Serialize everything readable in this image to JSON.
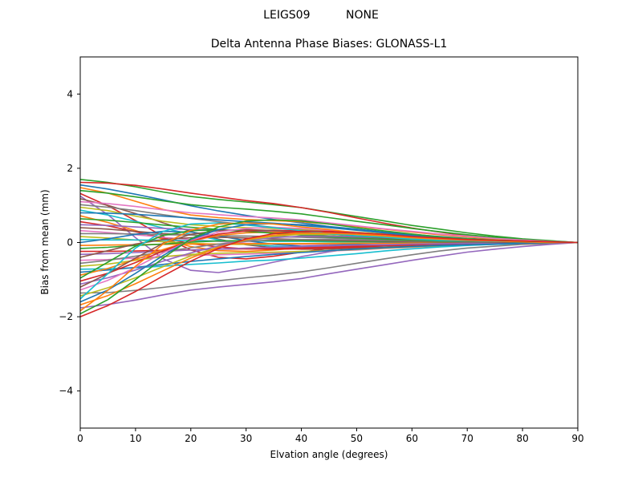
{
  "figure": {
    "suptitle": "LEIGS09          NONE",
    "background": "#ffffff",
    "text_color": "#000000",
    "axis_color": "#000000"
  },
  "chart_data": {
    "type": "line",
    "suptitle": "LEIGS09          NONE",
    "title": "Delta Antenna Phase Biases: GLONASS-L1",
    "xlabel": "Elvation angle (degrees)",
    "ylabel": "Bias from mean (mm)",
    "xlim": [
      0,
      90
    ],
    "ylim": [
      -5,
      5
    ],
    "xticks": [
      0,
      10,
      20,
      30,
      40,
      50,
      60,
      70,
      80,
      90
    ],
    "xtick_labels": [
      "0",
      "10",
      "20",
      "30",
      "40",
      "50",
      "60",
      "70",
      "80",
      "90"
    ],
    "yticks": [
      -4,
      -2,
      0,
      2,
      4
    ],
    "ytick_labels": [
      "−4",
      "−2",
      "0",
      "2",
      "4"
    ],
    "grid": false,
    "legend": "none",
    "x": [
      0,
      5,
      10,
      15,
      20,
      25,
      30,
      35,
      40,
      45,
      50,
      55,
      60,
      65,
      70,
      75,
      80,
      85,
      90
    ],
    "series": [
      {
        "color": "#2ca02c",
        "values": [
          1.7,
          1.62,
          1.5,
          1.36,
          1.24,
          1.16,
          1.09,
          1.02,
          0.94,
          0.82,
          0.7,
          0.58,
          0.46,
          0.36,
          0.26,
          0.17,
          0.1,
          0.05,
          0.0
        ]
      },
      {
        "color": "#d62728",
        "values": [
          1.62,
          1.6,
          1.54,
          1.44,
          1.33,
          1.23,
          1.13,
          1.05,
          0.94,
          0.81,
          0.66,
          0.52,
          0.39,
          0.28,
          0.18,
          0.11,
          0.06,
          0.03,
          0.0
        ]
      },
      {
        "color": "#1f77b4",
        "values": [
          1.55,
          1.44,
          1.3,
          1.15,
          0.99,
          0.85,
          0.73,
          0.62,
          0.53,
          0.43,
          0.36,
          0.28,
          0.22,
          0.16,
          0.11,
          0.08,
          0.05,
          0.02,
          0.0
        ]
      },
      {
        "color": "#ff7f0e",
        "values": [
          1.48,
          1.33,
          1.11,
          0.89,
          0.74,
          0.67,
          0.62,
          0.59,
          0.56,
          0.5,
          0.43,
          0.36,
          0.28,
          0.21,
          0.15,
          0.1,
          0.06,
          0.03,
          0.0
        ]
      },
      {
        "color": "#2ca02c",
        "values": [
          1.4,
          1.33,
          1.23,
          1.12,
          1.02,
          0.95,
          0.9,
          0.84,
          0.77,
          0.67,
          0.57,
          0.48,
          0.38,
          0.29,
          0.21,
          0.14,
          0.08,
          0.04,
          0.0
        ]
      },
      {
        "color": "#d62728",
        "values": [
          1.32,
          0.99,
          0.59,
          0.16,
          -0.2,
          -0.4,
          -0.44,
          -0.37,
          -0.26,
          -0.16,
          -0.07,
          0.0,
          0.04,
          0.05,
          0.05,
          0.04,
          0.03,
          0.01,
          0.0
        ]
      },
      {
        "color": "#9467bd",
        "values": [
          1.25,
          0.75,
          0.13,
          -0.44,
          -0.75,
          -0.81,
          -0.69,
          -0.53,
          -0.38,
          -0.25,
          -0.15,
          -0.09,
          -0.04,
          -0.01,
          0.01,
          0.01,
          0.01,
          0.0,
          0.0
        ]
      },
      {
        "color": "#8c564b",
        "values": [
          1.18,
          1.0,
          0.78,
          0.53,
          0.3,
          0.09,
          -0.06,
          -0.14,
          -0.18,
          -0.18,
          -0.15,
          -0.13,
          -0.09,
          -0.07,
          -0.05,
          -0.04,
          -0.02,
          -0.01,
          0.0
        ]
      },
      {
        "color": "#e377c2",
        "values": [
          1.1,
          1.05,
          0.97,
          0.88,
          0.8,
          0.75,
          0.7,
          0.66,
          0.61,
          0.53,
          0.45,
          0.37,
          0.3,
          0.23,
          0.17,
          0.11,
          0.07,
          0.03,
          0.0
        ]
      },
      {
        "color": "#7f7f7f",
        "values": [
          1.02,
          0.95,
          0.86,
          0.75,
          0.65,
          0.56,
          0.48,
          0.41,
          0.35,
          0.29,
          0.23,
          0.18,
          0.14,
          0.1,
          0.07,
          0.05,
          0.03,
          0.01,
          0.0
        ]
      },
      {
        "color": "#bcbd22",
        "values": [
          0.95,
          0.86,
          0.71,
          0.57,
          0.48,
          0.43,
          0.4,
          0.38,
          0.36,
          0.32,
          0.28,
          0.23,
          0.18,
          0.13,
          0.1,
          0.07,
          0.04,
          0.02,
          0.0
        ]
      },
      {
        "color": "#17becf",
        "values": [
          0.87,
          0.74,
          0.57,
          0.39,
          0.22,
          0.07,
          -0.04,
          -0.1,
          -0.13,
          -0.13,
          -0.11,
          -0.1,
          -0.07,
          -0.05,
          -0.03,
          -0.03,
          -0.02,
          -0.01,
          0.0
        ]
      },
      {
        "color": "#1f77b4",
        "values": [
          0.8,
          0.79,
          0.76,
          0.71,
          0.66,
          0.61,
          0.56,
          0.52,
          0.46,
          0.4,
          0.33,
          0.26,
          0.19,
          0.14,
          0.09,
          0.06,
          0.03,
          0.02,
          0.0
        ]
      },
      {
        "color": "#ff7f0e",
        "values": [
          0.72,
          0.54,
          0.32,
          0.09,
          -0.11,
          -0.22,
          -0.24,
          -0.2,
          -0.14,
          -0.09,
          -0.04,
          0.0,
          0.02,
          0.03,
          0.03,
          0.02,
          0.01,
          0.01,
          0.0
        ]
      },
      {
        "color": "#2ca02c",
        "values": [
          0.64,
          0.6,
          0.54,
          0.47,
          0.41,
          0.35,
          0.3,
          0.26,
          0.22,
          0.18,
          0.15,
          0.12,
          0.09,
          0.06,
          0.04,
          0.03,
          0.02,
          0.01,
          0.0
        ]
      },
      {
        "color": "#d62728",
        "values": [
          0.56,
          0.45,
          0.29,
          0.12,
          -0.03,
          -0.12,
          -0.17,
          -0.18,
          -0.17,
          -0.15,
          -0.12,
          -0.09,
          -0.07,
          -0.04,
          -0.03,
          -0.02,
          -0.01,
          -0.01,
          0.0
        ]
      },
      {
        "color": "#9467bd",
        "values": [
          0.48,
          0.46,
          0.42,
          0.38,
          0.35,
          0.33,
          0.31,
          0.29,
          0.26,
          0.23,
          0.2,
          0.16,
          0.13,
          0.1,
          0.07,
          0.05,
          0.03,
          0.01,
          0.0
        ]
      },
      {
        "color": "#8c564b",
        "values": [
          0.4,
          0.36,
          0.3,
          0.24,
          0.2,
          0.18,
          0.17,
          0.16,
          0.15,
          0.14,
          0.12,
          0.1,
          0.08,
          0.06,
          0.04,
          0.03,
          0.02,
          0.01,
          0.0
        ]
      },
      {
        "color": "#e377c2",
        "values": [
          0.32,
          0.27,
          0.21,
          0.14,
          0.08,
          0.03,
          -0.02,
          -0.04,
          -0.05,
          -0.05,
          -0.04,
          -0.04,
          -0.03,
          -0.02,
          -0.01,
          -0.01,
          -0.01,
          0.0,
          0.0
        ]
      },
      {
        "color": "#7f7f7f",
        "values": [
          0.24,
          0.24,
          0.23,
          0.21,
          0.2,
          0.18,
          0.17,
          0.16,
          0.14,
          0.12,
          0.1,
          0.08,
          0.06,
          0.04,
          0.03,
          0.02,
          0.01,
          0.0,
          0.0
        ]
      },
      {
        "color": "#bcbd22",
        "values": [
          0.16,
          0.12,
          0.07,
          0.02,
          -0.02,
          -0.05,
          -0.05,
          -0.04,
          -0.03,
          -0.02,
          -0.01,
          0.0,
          0.0,
          0.01,
          0.01,
          0.0,
          0.0,
          0.0,
          0.0
        ]
      },
      {
        "color": "#17becf",
        "values": [
          0.08,
          0.07,
          0.07,
          0.06,
          0.05,
          0.04,
          0.04,
          0.03,
          0.03,
          0.02,
          0.02,
          0.01,
          0.01,
          0.01,
          0.01,
          0.0,
          0.0,
          0.0,
          0.0
        ]
      },
      {
        "color": "#1f77b4",
        "values": [
          0.0,
          0.1,
          0.22,
          0.3,
          0.28,
          0.18,
          0.05,
          -0.05,
          -0.1,
          -0.08,
          -0.04,
          0.0,
          0.02,
          0.03,
          0.02,
          0.01,
          0.01,
          0.0,
          0.0
        ]
      },
      {
        "color": "#ff7f0e",
        "values": [
          -0.08,
          -0.07,
          -0.06,
          -0.05,
          -0.04,
          -0.04,
          -0.03,
          -0.03,
          -0.03,
          -0.03,
          -0.02,
          -0.02,
          -0.02,
          -0.01,
          -0.01,
          -0.01,
          0.0,
          0.0,
          0.0
        ]
      },
      {
        "color": "#2ca02c",
        "values": [
          -0.16,
          -0.13,
          -0.08,
          -0.04,
          0.01,
          0.04,
          0.05,
          0.05,
          0.05,
          0.04,
          0.03,
          0.03,
          0.02,
          0.01,
          0.01,
          0.0,
          0.0,
          0.0,
          0.0
        ]
      },
      {
        "color": "#d62728",
        "values": [
          -0.24,
          -0.24,
          -0.23,
          -0.21,
          -0.2,
          -0.18,
          -0.17,
          -0.16,
          -0.14,
          -0.12,
          -0.1,
          -0.08,
          -0.06,
          -0.04,
          -0.03,
          -0.02,
          -0.01,
          0.0,
          0.0
        ]
      },
      {
        "color": "#9467bd",
        "values": [
          -0.32,
          -0.3,
          -0.27,
          -0.24,
          -0.2,
          -0.18,
          -0.15,
          -0.13,
          -0.11,
          -0.09,
          -0.07,
          -0.06,
          -0.04,
          -0.03,
          -0.02,
          -0.02,
          -0.01,
          0.0,
          0.0
        ]
      },
      {
        "color": "#8c564b",
        "values": [
          -0.4,
          -0.22,
          -0.04,
          0.08,
          0.13,
          0.14,
          0.12,
          0.1,
          0.08,
          0.06,
          0.05,
          0.04,
          0.02,
          0.02,
          0.01,
          0.01,
          0.0,
          0.0,
          0.0
        ]
      },
      {
        "color": "#e377c2",
        "values": [
          -0.48,
          -0.46,
          -0.42,
          -0.38,
          -0.35,
          -0.33,
          -0.31,
          -0.29,
          -0.26,
          -0.23,
          -0.2,
          -0.16,
          -0.13,
          -0.1,
          -0.07,
          -0.05,
          -0.03,
          -0.01,
          0.0
        ]
      },
      {
        "color": "#7f7f7f",
        "values": [
          -0.56,
          -0.48,
          -0.37,
          -0.25,
          -0.14,
          -0.04,
          0.03,
          0.07,
          0.08,
          0.08,
          0.07,
          0.06,
          0.04,
          0.03,
          0.02,
          0.02,
          0.01,
          0.01,
          0.0
        ]
      },
      {
        "color": "#bcbd22",
        "values": [
          -0.64,
          -0.58,
          -0.48,
          -0.38,
          -0.32,
          -0.29,
          -0.27,
          -0.26,
          -0.24,
          -0.22,
          -0.19,
          -0.15,
          -0.12,
          -0.09,
          -0.06,
          -0.04,
          -0.03,
          -0.01,
          0.0
        ]
      },
      {
        "color": "#17becf",
        "values": [
          -0.72,
          -0.71,
          -0.68,
          -0.64,
          -0.59,
          -0.55,
          -0.5,
          -0.47,
          -0.42,
          -0.36,
          -0.3,
          -0.23,
          -0.17,
          -0.12,
          -0.08,
          -0.05,
          -0.03,
          -0.01,
          0.0
        ]
      },
      {
        "color": "#1f77b4",
        "values": [
          -0.8,
          -0.74,
          -0.67,
          -0.59,
          -0.51,
          -0.44,
          -0.38,
          -0.32,
          -0.27,
          -0.22,
          -0.18,
          -0.14,
          -0.11,
          -0.08,
          -0.06,
          -0.04,
          -0.02,
          -0.01,
          0.0
        ]
      },
      {
        "color": "#ff7f0e",
        "values": [
          -0.88,
          -0.7,
          -0.46,
          -0.19,
          0.04,
          0.19,
          0.26,
          0.28,
          0.26,
          0.23,
          0.18,
          0.14,
          0.11,
          0.07,
          0.04,
          0.03,
          0.02,
          0.01,
          0.0
        ]
      },
      {
        "color": "#2ca02c",
        "values": [
          -0.96,
          -0.53,
          -0.1,
          0.19,
          0.32,
          0.34,
          0.3,
          0.25,
          0.2,
          0.15,
          0.12,
          0.09,
          0.06,
          0.04,
          0.03,
          0.02,
          0.01,
          0.0,
          0.0
        ]
      },
      {
        "color": "#d62728",
        "values": [
          -1.04,
          -0.83,
          -0.54,
          -0.23,
          0.05,
          0.23,
          0.31,
          0.33,
          0.31,
          0.27,
          0.22,
          0.17,
          0.12,
          0.08,
          0.05,
          0.03,
          0.02,
          0.01,
          0.0
        ]
      },
      {
        "color": "#9467bd",
        "values": [
          -1.12,
          -0.95,
          -0.74,
          -0.5,
          -0.28,
          -0.09,
          0.06,
          0.13,
          0.17,
          0.17,
          0.15,
          0.12,
          0.09,
          0.07,
          0.04,
          0.03,
          0.02,
          0.01,
          0.0
        ]
      },
      {
        "color": "#8c564b",
        "values": [
          -1.2,
          -0.84,
          -0.42,
          -0.02,
          0.22,
          0.32,
          0.35,
          0.32,
          0.28,
          0.23,
          0.17,
          0.12,
          0.08,
          0.06,
          0.04,
          0.02,
          0.01,
          0.0,
          0.0
        ]
      },
      {
        "color": "#e377c2",
        "values": [
          -1.28,
          -1.02,
          -0.67,
          -0.28,
          0.06,
          0.28,
          0.38,
          0.41,
          0.38,
          0.33,
          0.27,
          0.2,
          0.15,
          0.1,
          0.06,
          0.04,
          0.03,
          0.01,
          0.0
        ]
      },
      {
        "color": "#7f7f7f",
        "values": [
          -1.36,
          -1.35,
          -1.29,
          -1.21,
          -1.12,
          -1.03,
          -0.95,
          -0.88,
          -0.79,
          -0.68,
          -0.56,
          -0.44,
          -0.33,
          -0.23,
          -0.15,
          -0.1,
          -0.05,
          -0.03,
          0.0
        ]
      },
      {
        "color": "#bcbd22",
        "values": [
          -1.44,
          -1.22,
          -0.95,
          -0.65,
          -0.36,
          -0.12,
          0.07,
          0.17,
          0.22,
          0.22,
          0.19,
          0.16,
          0.12,
          0.09,
          0.06,
          0.04,
          0.03,
          0.01,
          0.0
        ]
      },
      {
        "color": "#17becf",
        "values": [
          -1.52,
          -0.84,
          -0.15,
          0.3,
          0.5,
          0.53,
          0.47,
          0.4,
          0.32,
          0.24,
          0.18,
          0.14,
          0.09,
          0.06,
          0.05,
          0.03,
          0.02,
          0.0,
          0.0
        ]
      },
      {
        "color": "#1f77b4",
        "values": [
          -1.6,
          -1.28,
          -0.83,
          -0.35,
          0.08,
          0.35,
          0.48,
          0.51,
          0.48,
          0.42,
          0.34,
          0.26,
          0.19,
          0.13,
          0.08,
          0.05,
          0.03,
          0.02,
          0.0
        ]
      },
      {
        "color": "#ff7f0e",
        "values": [
          -1.68,
          -1.43,
          -1.11,
          -0.76,
          -0.42,
          -0.13,
          0.08,
          0.2,
          0.25,
          0.25,
          0.22,
          0.18,
          0.13,
          0.1,
          0.07,
          0.05,
          0.03,
          0.02,
          0.0
        ]
      },
      {
        "color": "#9467bd",
        "values": [
          -1.76,
          -1.67,
          -1.55,
          -1.41,
          -1.28,
          -1.2,
          -1.13,
          -1.06,
          -0.97,
          -0.84,
          -0.72,
          -0.6,
          -0.48,
          -0.37,
          -0.26,
          -0.18,
          -0.11,
          -0.05,
          0.0
        ]
      },
      {
        "color": "#ff7f0e",
        "values": [
          -1.84,
          -1.29,
          -0.64,
          -0.04,
          0.33,
          0.5,
          0.53,
          0.5,
          0.42,
          0.35,
          0.26,
          0.18,
          0.13,
          0.09,
          0.06,
          0.04,
          0.02,
          0.0,
          0.0
        ]
      },
      {
        "color": "#2ca02c",
        "values": [
          -1.92,
          -1.54,
          -1.0,
          -0.42,
          0.1,
          0.42,
          0.58,
          0.61,
          0.58,
          0.5,
          0.4,
          0.31,
          0.23,
          0.15,
          0.1,
          0.06,
          0.04,
          0.02,
          0.0
        ]
      },
      {
        "color": "#d62728",
        "values": [
          -2.0,
          -1.7,
          -1.32,
          -0.9,
          -0.5,
          -0.16,
          0.1,
          0.24,
          0.3,
          0.3,
          0.26,
          0.22,
          0.16,
          0.12,
          0.08,
          0.06,
          0.04,
          0.02,
          0.0
        ]
      }
    ]
  }
}
